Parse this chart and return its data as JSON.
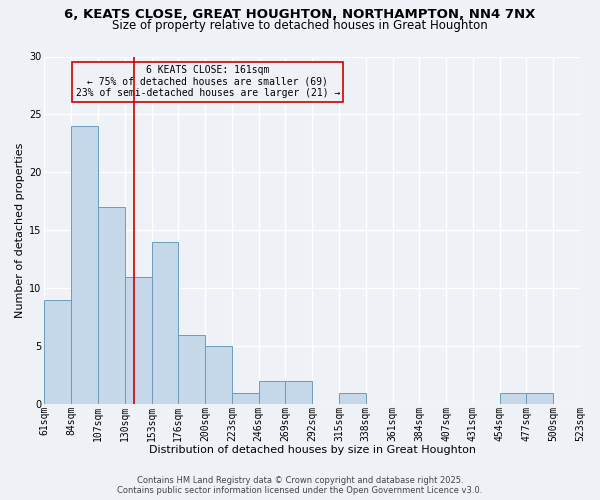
{
  "title1": "6, KEATS CLOSE, GREAT HOUGHTON, NORTHAMPTON, NN4 7NX",
  "title2": "Size of property relative to detached houses in Great Houghton",
  "bar_values": [
    9,
    24,
    17,
    11,
    14,
    6,
    5,
    1,
    2,
    2,
    0,
    1,
    0,
    0,
    0,
    0,
    0,
    1,
    1,
    0
  ],
  "bin_labels": [
    "61sqm",
    "84sqm",
    "107sqm",
    "130sqm",
    "153sqm",
    "176sqm",
    "200sqm",
    "223sqm",
    "246sqm",
    "269sqm",
    "292sqm",
    "315sqm",
    "338sqm",
    "361sqm",
    "384sqm",
    "407sqm",
    "431sqm",
    "454sqm",
    "477sqm",
    "500sqm",
    "523sqm"
  ],
  "bar_color": "#c5d8ea",
  "bar_edge_color": "#6a9cbd",
  "vline_x": 3,
  "vline_color": "#cc0000",
  "annotation_title": "6 KEATS CLOSE: 161sqm",
  "annotation_line1": "← 75% of detached houses are smaller (69)",
  "annotation_line2": "23% of semi-detached houses are larger (21) →",
  "annotation_box_color": "#cc0000",
  "xlabel": "Distribution of detached houses by size in Great Houghton",
  "ylabel": "Number of detached properties",
  "ylim": [
    0,
    30
  ],
  "yticks": [
    0,
    5,
    10,
    15,
    20,
    25,
    30
  ],
  "footer1": "Contains HM Land Registry data © Crown copyright and database right 2025.",
  "footer2": "Contains public sector information licensed under the Open Government Licence v3.0.",
  "bg_color": "#eef2f7",
  "title_fontsize": 9.5,
  "subtitle_fontsize": 8.5,
  "xlabel_fontsize": 8,
  "ylabel_fontsize": 8,
  "tick_fontsize": 7,
  "annot_fontsize": 7,
  "footer_fontsize": 6
}
